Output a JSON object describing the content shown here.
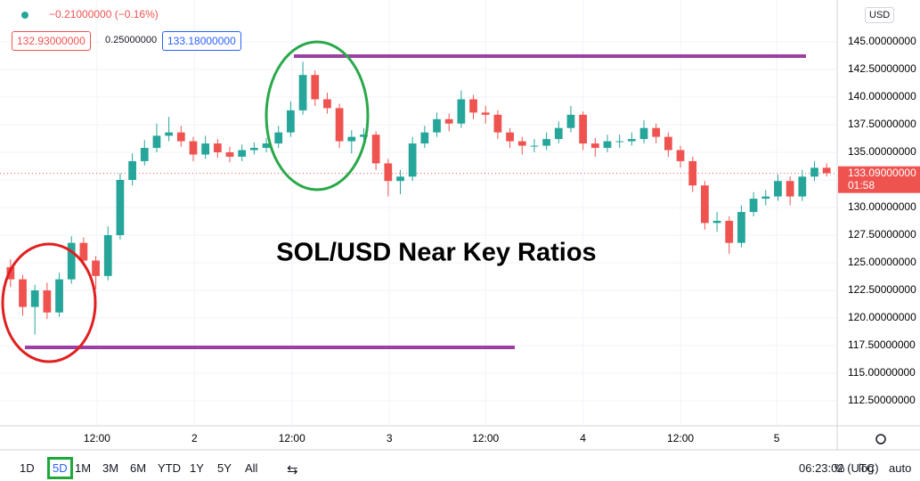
{
  "header": {
    "change": "−0.21000000 (−0.16%)",
    "bid": "132.93000000",
    "spread": "0.25000000",
    "ask": "133.18000000",
    "currency": "USD"
  },
  "chart_data": {
    "type": "candlestick",
    "annotation": "SOL/USD Near Key Ratios",
    "up_color": "#26a69a",
    "down_color": "#ef5350",
    "grid": true,
    "open": [
      124.6,
      123.5,
      121.0,
      122.5,
      120.5,
      123.5,
      126.8,
      125.2,
      123.8,
      127.5,
      132.5,
      134.2,
      135.4,
      136.5,
      136.8,
      136.0,
      134.8,
      135.8,
      135.0,
      134.6,
      135.2,
      135.4,
      135.8,
      136.8,
      138.8,
      142.0,
      139.8,
      139.0,
      136.0,
      136.4,
      136.6,
      134.0,
      132.4,
      132.8,
      135.8,
      136.8,
      138.0,
      137.6,
      139.8,
      138.6,
      138.4,
      136.8,
      136.0,
      135.6,
      135.6,
      136.2,
      137.2,
      138.4,
      135.8,
      135.4,
      136.0,
      136.0,
      136.2,
      137.2,
      136.4,
      135.2,
      134.2,
      132.0,
      128.6,
      128.8,
      126.8,
      129.6,
      130.8,
      131.0,
      132.4,
      131.0,
      132.8,
      133.6
    ],
    "high": [
      125.3,
      123.9,
      123.0,
      123.2,
      124.1,
      127.4,
      127.3,
      125.6,
      128.3,
      133.1,
      134.9,
      136.1,
      137.6,
      138.2,
      137.4,
      136.4,
      136.5,
      136.2,
      135.5,
      135.7,
      135.9,
      136.3,
      137.4,
      139.6,
      143.2,
      142.4,
      140.4,
      139.4,
      137.0,
      137.2,
      136.9,
      134.4,
      133.4,
      136.4,
      137.4,
      138.6,
      138.5,
      140.6,
      140.2,
      139.2,
      138.8,
      137.2,
      136.4,
      136.2,
      136.8,
      137.8,
      139.2,
      138.7,
      136.3,
      136.6,
      136.6,
      136.8,
      137.9,
      137.6,
      136.8,
      135.6,
      134.6,
      132.4,
      129.6,
      129.2,
      130.2,
      131.4,
      131.6,
      133.0,
      132.8,
      133.4,
      134.2,
      134.0
    ],
    "low": [
      122.8,
      120.2,
      118.5,
      119.9,
      120.1,
      123.1,
      124.7,
      122.6,
      123.4,
      127.1,
      132.0,
      133.8,
      135.0,
      136.0,
      135.5,
      134.2,
      134.4,
      134.5,
      134.1,
      134.2,
      134.8,
      135.0,
      135.4,
      136.4,
      138.4,
      139.2,
      138.5,
      135.4,
      134.9,
      135.8,
      133.4,
      131.0,
      131.2,
      132.4,
      135.4,
      136.4,
      136.9,
      137.2,
      138.0,
      137.6,
      136.2,
      135.4,
      134.8,
      135.0,
      135.2,
      135.8,
      136.8,
      135.2,
      134.6,
      135.0,
      135.4,
      135.6,
      135.8,
      135.8,
      134.6,
      133.6,
      131.4,
      128.0,
      127.8,
      125.8,
      126.4,
      129.2,
      130.2,
      130.6,
      130.2,
      130.6,
      132.4,
      132.8
    ],
    "close": [
      123.5,
      121.0,
      122.5,
      120.5,
      123.5,
      126.8,
      125.2,
      123.8,
      127.5,
      132.5,
      134.2,
      135.4,
      136.5,
      136.8,
      136.0,
      134.8,
      135.8,
      135.0,
      134.6,
      135.2,
      135.4,
      135.8,
      136.8,
      138.8,
      142.0,
      139.8,
      139.0,
      136.0,
      136.4,
      136.6,
      134.0,
      132.4,
      132.8,
      135.8,
      136.8,
      138.0,
      137.6,
      139.8,
      138.6,
      138.4,
      136.8,
      136.0,
      135.6,
      135.6,
      136.2,
      137.2,
      138.4,
      135.8,
      135.4,
      136.0,
      136.0,
      136.2,
      137.2,
      136.4,
      135.2,
      134.2,
      132.0,
      128.6,
      128.8,
      126.8,
      129.6,
      130.8,
      131.0,
      132.4,
      131.0,
      132.8,
      133.6,
      133.1
    ],
    "last_price": {
      "value": 133.09,
      "label": "133.09000000"
    },
    "countdown": "01:58",
    "ylim": [
      110.24,
      148.79
    ],
    "yticks": [
      {
        "value": 145,
        "label": "145.00000000"
      },
      {
        "value": 142.5,
        "label": "142.50000000"
      },
      {
        "value": 140,
        "label": "140.00000000"
      },
      {
        "value": 137.5,
        "label": "137.50000000"
      },
      {
        "value": 135,
        "label": "135.00000000"
      },
      {
        "value": 132.5,
        "label": "132.50000000"
      },
      {
        "value": 130,
        "label": "130.00000000"
      },
      {
        "value": 127.5,
        "label": "127.50000000"
      },
      {
        "value": 125,
        "label": "125.00000000"
      },
      {
        "value": 122.5,
        "label": "122.50000000"
      },
      {
        "value": 120,
        "label": "120.00000000"
      },
      {
        "value": 117.5,
        "label": "117.50000000"
      },
      {
        "value": 115,
        "label": "115.00000000"
      },
      {
        "value": 112.5,
        "label": "112.50000000"
      }
    ],
    "xlim": [
      0,
      68
    ],
    "xticks": [
      {
        "value": 7.6,
        "label": "12:00"
      },
      {
        "value": 15.6,
        "label": "2"
      },
      {
        "value": 23.6,
        "label": "12:00"
      },
      {
        "value": 31.6,
        "label": "3"
      },
      {
        "value": 39.5,
        "label": "12:00"
      },
      {
        "value": 47.5,
        "label": "4"
      },
      {
        "value": 55.5,
        "label": "12:00"
      },
      {
        "value": 63.4,
        "label": "5"
      }
    ]
  },
  "toolbar": {
    "ranges": [
      "1D",
      "5D",
      "1M",
      "3M",
      "6M",
      "YTD",
      "1Y",
      "5Y",
      "All"
    ],
    "clock": "06:23:02 (UTC)",
    "percent": "%",
    "log": "log",
    "auto": "auto"
  }
}
